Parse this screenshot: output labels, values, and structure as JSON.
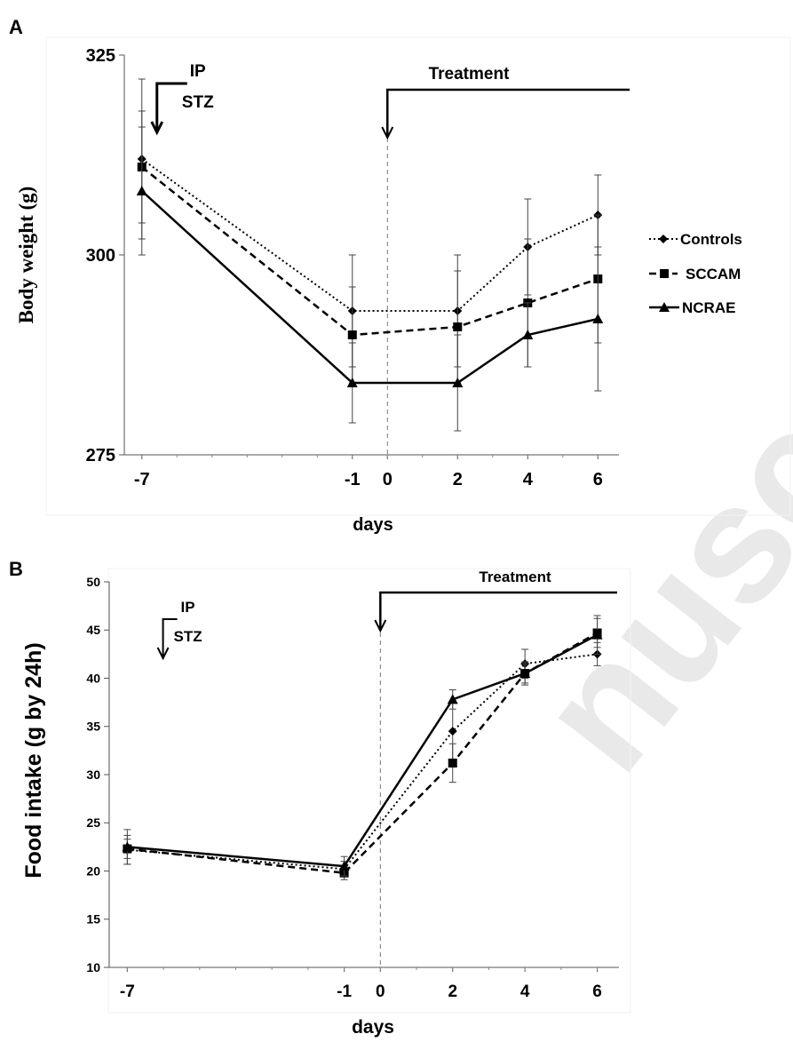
{
  "watermark": "nusc",
  "chart_data": [
    {
      "type": "line",
      "panel_label": "A",
      "xlabel": "days",
      "ylabel": "Body weight (g)",
      "x": [
        -7,
        -1,
        0,
        2,
        4,
        6
      ],
      "x_ticks": [
        "-7",
        "-1",
        "0",
        "2",
        "4",
        "6"
      ],
      "xlim": [
        -7.5,
        6.6
      ],
      "ylim": [
        275,
        325
      ],
      "y_ticks": [
        "275",
        "300",
        "325"
      ],
      "grid": false,
      "legend_position": "right",
      "annotations": {
        "ip_top": "IP",
        "ip_bottom": "STZ",
        "ip_day": -7,
        "treatment": "Treatment",
        "treatment_day": 0
      },
      "series": [
        {
          "name": "Controls",
          "style": "dotted",
          "marker": "diamond",
          "x": [
            -7,
            -1,
            2,
            4,
            6
          ],
          "values": [
            312,
            293,
            293,
            301,
            305
          ],
          "err": [
            10,
            7,
            7,
            6,
            5
          ]
        },
        {
          "name": "SCCAM",
          "style": "dashed",
          "marker": "square",
          "x": [
            -7,
            -1,
            2,
            4,
            6
          ],
          "values": [
            311,
            290,
            291,
            294,
            297
          ],
          "err": [
            7,
            6,
            7,
            8,
            8
          ]
        },
        {
          "name": "NCRAE",
          "style": "solid",
          "marker": "triangle",
          "x": [
            -7,
            -1,
            2,
            4,
            6
          ],
          "values": [
            308,
            284,
            284,
            290,
            292
          ],
          "err": [
            8,
            5,
            6,
            4,
            9
          ]
        }
      ]
    },
    {
      "type": "line",
      "panel_label": "B",
      "xlabel": "days",
      "ylabel": "Food intake (g by 24h)",
      "x": [
        -7,
        -1,
        0,
        2,
        4,
        6
      ],
      "x_ticks": [
        "-7",
        "-1",
        "0",
        "2",
        "4",
        "6"
      ],
      "xlim": [
        -7.5,
        6.6
      ],
      "ylim": [
        10,
        50
      ],
      "y_ticks": [
        "10",
        "15",
        "20",
        "25",
        "30",
        "35",
        "40",
        "45",
        "50"
      ],
      "grid": false,
      "annotations": {
        "ip_top": "IP",
        "ip_bottom": "STZ",
        "ip_day": -6.7,
        "treatment": "Treatment",
        "treatment_day": 0
      },
      "series": [
        {
          "name": "Controls",
          "style": "dotted",
          "marker": "diamond",
          "x": [
            -7,
            -1,
            2,
            4,
            6
          ],
          "values": [
            22.2,
            20.2,
            34.5,
            41.5,
            42.5
          ],
          "err": [
            1.5,
            0.8,
            3.0,
            1.5,
            1.2
          ]
        },
        {
          "name": "SCCAM",
          "style": "dashed",
          "marker": "square",
          "x": [
            -7,
            -1,
            2,
            4,
            6
          ],
          "values": [
            22.3,
            19.8,
            31.2,
            40.5,
            44.7
          ],
          "err": [
            1.0,
            0.7,
            2.0,
            1.2,
            1.5
          ]
        },
        {
          "name": "NCRAE",
          "style": "solid",
          "marker": "triangle",
          "x": [
            -7,
            -1,
            2,
            4,
            6
          ],
          "values": [
            22.5,
            20.5,
            37.8,
            40.5,
            44.5
          ],
          "err": [
            1.8,
            1.0,
            1.0,
            1.0,
            2.0
          ]
        }
      ]
    }
  ]
}
